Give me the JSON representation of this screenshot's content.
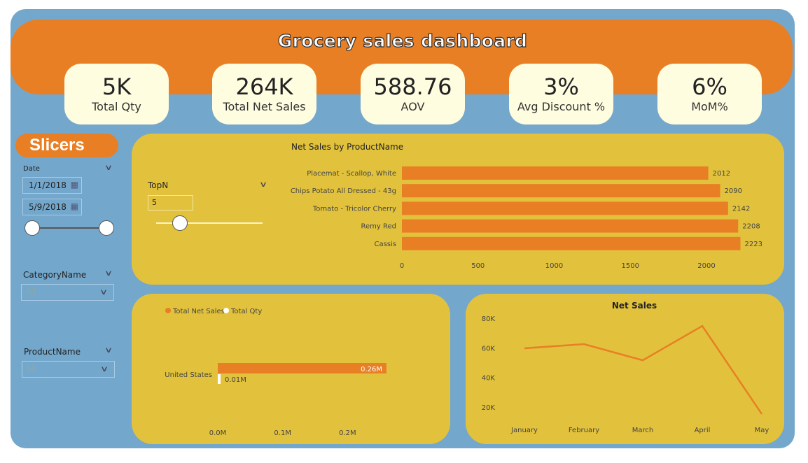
{
  "header": {
    "title": "Grocery sales dashboard"
  },
  "kpis": [
    {
      "value": "5K",
      "label": "Total Qty"
    },
    {
      "value": "264K",
      "label": "Total Net Sales"
    },
    {
      "value": "588.76",
      "label": "AOV"
    },
    {
      "value": "3%",
      "label": "Avg Discount %"
    },
    {
      "value": "6%",
      "label": "MoM%"
    }
  ],
  "slicers": {
    "title": "Slicers",
    "date_label": "Date",
    "start_date": "1/1/2018",
    "end_date": "5/9/2018",
    "category_label": "CategoryName",
    "category_value": "All",
    "product_label": "ProductName",
    "product_value": "All"
  },
  "topn": {
    "label": "TopN",
    "value": "5"
  },
  "colors": {
    "frame": "#74a7cc",
    "orange": "#e87f25",
    "panel": "#e2c23c",
    "card": "#fffde0"
  },
  "chart_data": [
    {
      "type": "bar",
      "orientation": "horizontal",
      "title": "Net Sales by ProductName",
      "categories": [
        "Placemat - Scallop, White",
        "Chips Potato All Dressed - 43g",
        "Tomato - Tricolor Cherry",
        "Remy Red",
        "Cassis"
      ],
      "values": [
        2012,
        2090,
        2142,
        2208,
        2223
      ],
      "labels": [
        "2012",
        "2090",
        "2142",
        "2208",
        "2223"
      ],
      "xticks": [
        "0",
        "500",
        "1000",
        "1500",
        "2000"
      ],
      "xlim": [
        0,
        2250
      ]
    },
    {
      "type": "bar",
      "orientation": "horizontal",
      "categories": [
        "United States"
      ],
      "series": [
        {
          "name": "Total Net Sales",
          "values": [
            0.26
          ],
          "label": "0.26M",
          "color": "#e87f25"
        },
        {
          "name": "Total Qty",
          "values": [
            0.005
          ],
          "label": "0.01M",
          "color": "#ffffff"
        }
      ],
      "xticks": [
        "0.0M",
        "0.1M",
        "0.2M"
      ],
      "xlim": [
        0,
        0.26
      ]
    },
    {
      "type": "line",
      "title": "Net Sales",
      "categories": [
        "January",
        "February",
        "March",
        "April",
        "May"
      ],
      "values": [
        59700,
        62500,
        51600,
        74800,
        15300
      ],
      "yticks": [
        "20K",
        "40K",
        "60K",
        "80K"
      ],
      "ylim": [
        20000,
        80000
      ]
    }
  ]
}
